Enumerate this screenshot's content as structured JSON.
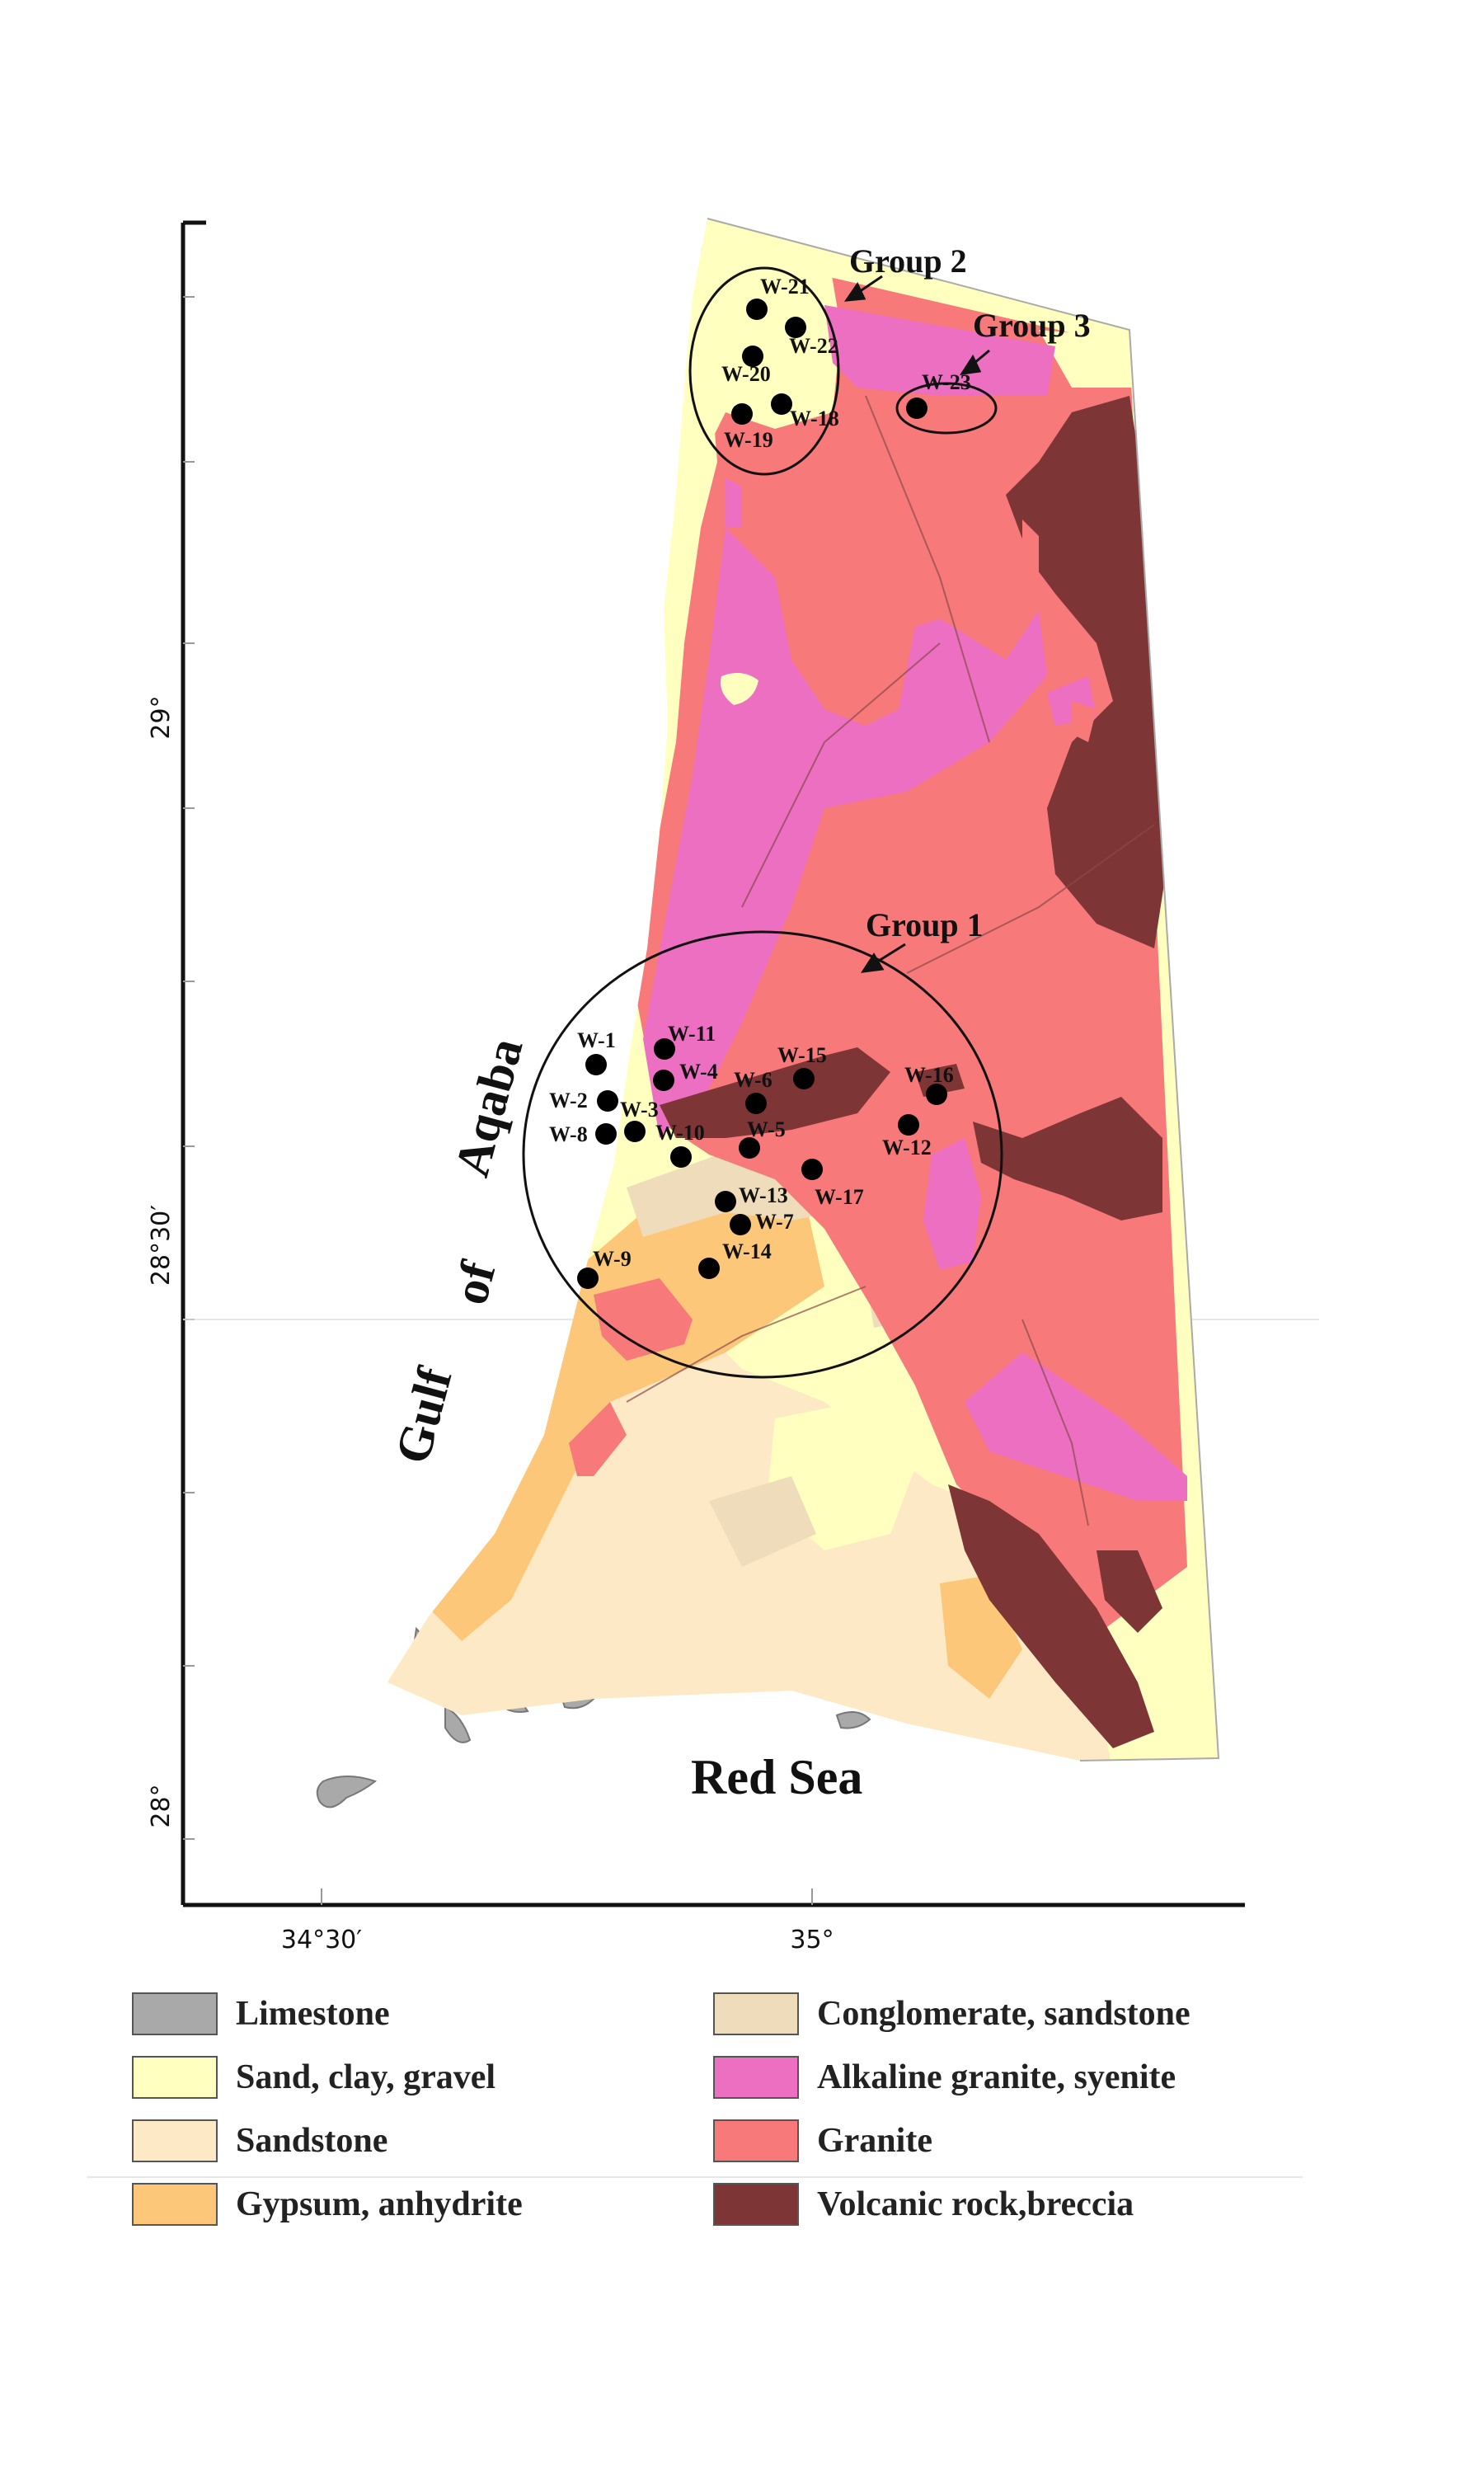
{
  "map": {
    "axes": {
      "y_ticks": [
        "29°",
        "28°30′",
        "28°"
      ],
      "x_ticks": [
        "34°30′",
        "35°"
      ]
    },
    "labels": {
      "red_sea": "Red Sea",
      "gulf_word1": "Gulf",
      "gulf_word2": "of",
      "gulf_word3": "Aqaba"
    },
    "groups": [
      {
        "label": "Group 1"
      },
      {
        "label": "Group 2"
      },
      {
        "label": "Group 3"
      }
    ],
    "wells": [
      "W-1",
      "W-2",
      "W-3",
      "W-4",
      "W-5",
      "W-6",
      "W-7",
      "W-8",
      "W-9",
      "W-10",
      "W-11",
      "W-12",
      "W-13",
      "W-14",
      "W-15",
      "W-16",
      "W-17",
      "W-18",
      "W-19",
      "W-20",
      "W-21",
      "W-22",
      "W-23"
    ],
    "colors": {
      "limestone": "#a9a9a9",
      "sand_clay_gravel": "#ffffc0",
      "sandstone": "#fde9c5",
      "gypsum_anhydrite": "#fcc778",
      "conglomerate_sandstone": "#eedcba",
      "alkaline_granite_syenite": "#ec6fc1",
      "granite": "#f7797a",
      "volcanic_rock_breccia": "#7d3535"
    }
  },
  "legend": [
    {
      "label": "Limestone",
      "color": "#a9a9a9"
    },
    {
      "label": "Sand, clay, gravel",
      "color": "#ffffc0"
    },
    {
      "label": "Sandstone",
      "color": "#fde9c5"
    },
    {
      "label": "Gypsum, anhydrite",
      "color": "#fcc778"
    },
    {
      "label": "Conglomerate, sandstone",
      "color": "#eedcba"
    },
    {
      "label": "Alkaline granite, syenite",
      "color": "#ec6fc1"
    },
    {
      "label": "Granite",
      "color": "#f7797a"
    },
    {
      "label": "Volcanic rock,breccia",
      "color": "#7d3535"
    }
  ]
}
